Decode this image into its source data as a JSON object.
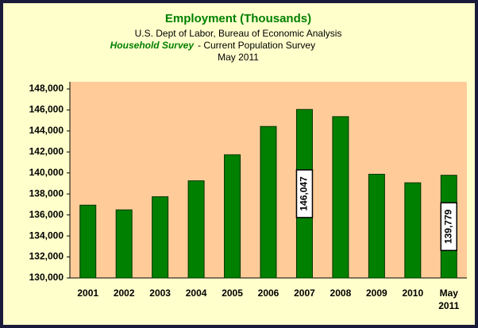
{
  "chart_data": {
    "type": "bar",
    "title": "Employment (Thousands)",
    "subtitle": "U.S. Dept of Labor, Bureau of Economic Analysis",
    "survey_name": "Household Survey",
    "survey_rest": "- Current Population Survey",
    "period": "May 2011",
    "categories": [
      "2001",
      "2002",
      "2003",
      "2004",
      "2005",
      "2006",
      "2007",
      "2008",
      "2009",
      "2010",
      "May 2011"
    ],
    "values": [
      136933,
      136485,
      137736,
      139252,
      141730,
      144427,
      146047,
      145362,
      139877,
      139064,
      139779
    ],
    "value_labels": [
      null,
      null,
      null,
      null,
      null,
      null,
      "146,047",
      null,
      null,
      null,
      "139,779"
    ],
    "color": "#008000",
    "ylim": [
      130000,
      148000
    ],
    "yticks": [
      {
        "value": 130000,
        "label": "130,000"
      },
      {
        "value": 132000,
        "label": "132,000"
      },
      {
        "value": 134000,
        "label": "134,000"
      },
      {
        "value": 136000,
        "label": "136,000"
      },
      {
        "value": 138000,
        "label": "138,000"
      },
      {
        "value": 140000,
        "label": "140,000"
      },
      {
        "value": 142000,
        "label": "142,000"
      },
      {
        "value": 144000,
        "label": "144,000"
      },
      {
        "value": 146000,
        "label": "146,000"
      },
      {
        "value": 148000,
        "label": "148,000"
      }
    ],
    "grid": false
  }
}
